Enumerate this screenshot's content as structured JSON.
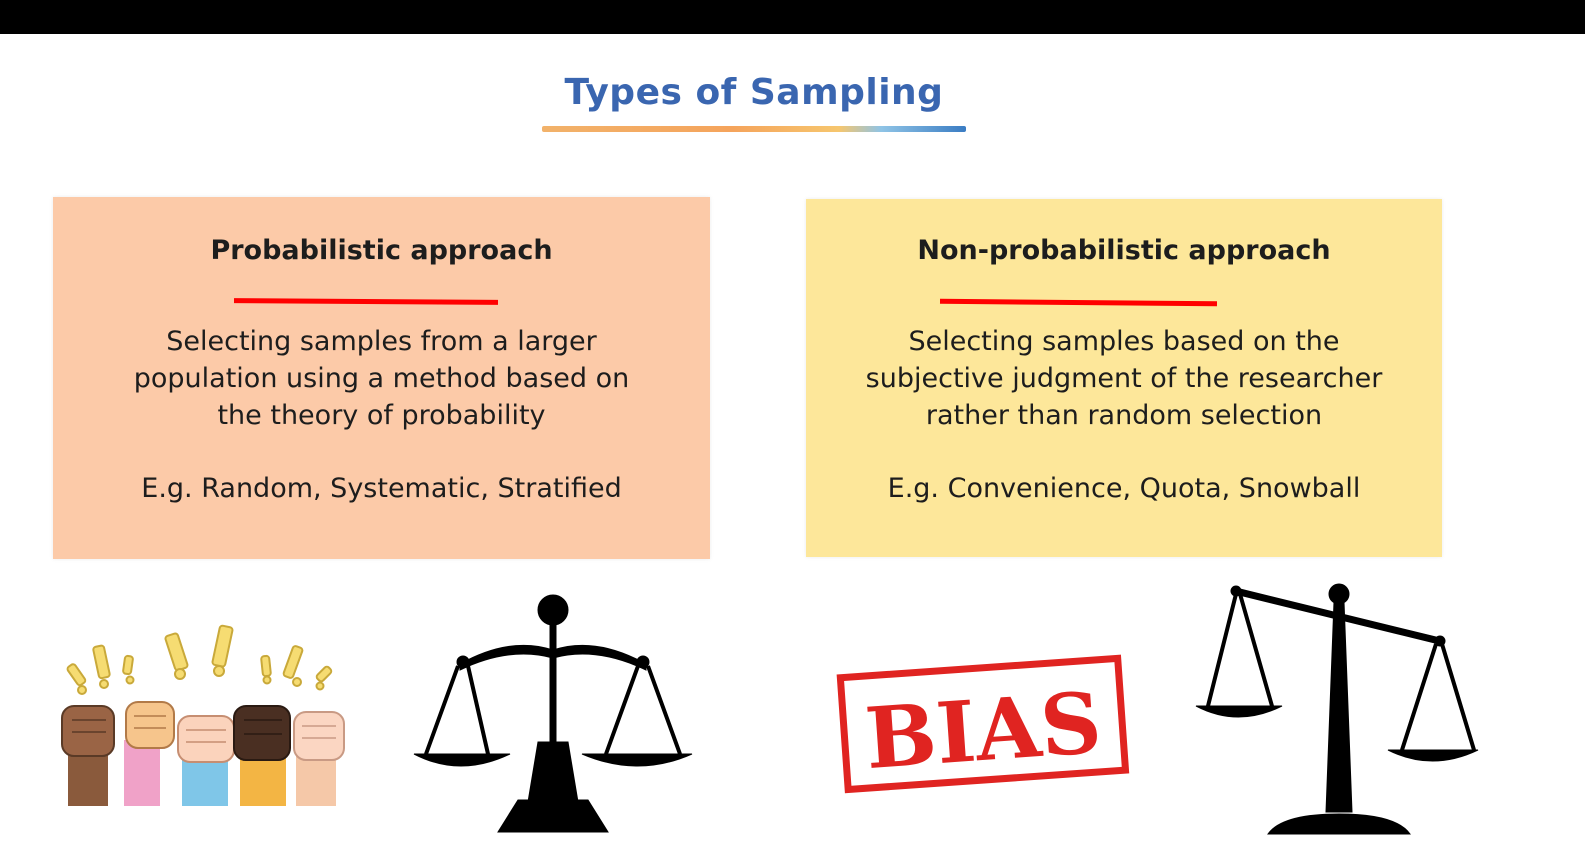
{
  "title": "Types of Sampling",
  "cards": [
    {
      "heading": "Probabilistic approach",
      "description": [
        "Selecting samples from a larger",
        "population using a method based on",
        "the theory of probability"
      ],
      "example": "E.g. Random, Systematic, Stratified",
      "background": "#fccaa8"
    },
    {
      "heading": "Non-probabilistic approach",
      "description": [
        "Selecting samples based on the",
        "subjective judgment of the researcher",
        "rather than random selection"
      ],
      "example": "E.g. Convenience, Quota, Snowball",
      "background": "#fde79a"
    }
  ],
  "illustrations": {
    "fists": "raised-fists-icon",
    "balanced_scale": "balanced-scale-icon",
    "bias_stamp_text": "BIAS",
    "tilted_scale": "tilted-scale-icon"
  },
  "colors": {
    "title": "#3a66b0",
    "accent_underline": "#ff0000",
    "stamp": "#e02421"
  }
}
